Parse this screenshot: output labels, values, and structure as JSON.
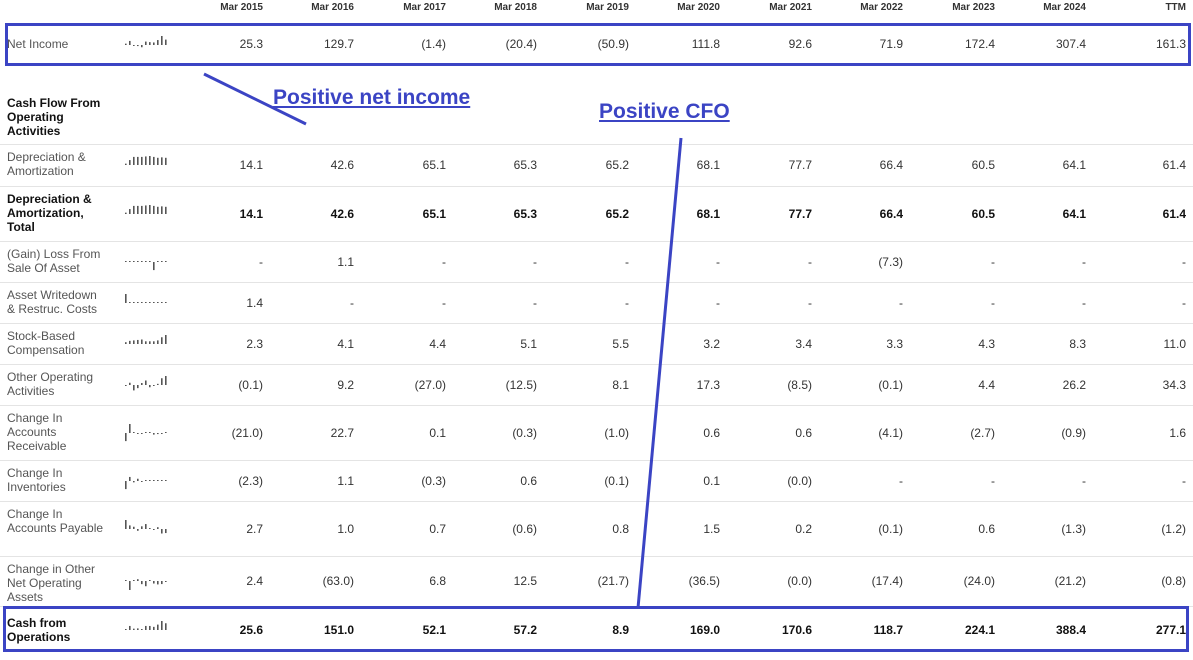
{
  "columns": [
    "Mar 2015",
    "Mar 2016",
    "Mar 2017",
    "Mar 2018",
    "Mar 2019",
    "Mar 2020",
    "Mar 2021",
    "Mar 2022",
    "Mar 2023",
    "Mar 2024",
    "TTM"
  ],
  "net_income": {
    "label": "Net Income",
    "values": [
      "25.3",
      "129.7",
      "(1.4)",
      "(20.4)",
      "(50.9)",
      "111.8",
      "92.6",
      "71.9",
      "172.4",
      "307.4",
      "161.3"
    ]
  },
  "section_header": "Cash Flow From Operating Activities",
  "rows": [
    {
      "label": "Depreciation & Amortization",
      "bold": false,
      "values": [
        "14.1",
        "42.6",
        "65.1",
        "65.3",
        "65.2",
        "68.1",
        "77.7",
        "66.4",
        "60.5",
        "64.1",
        "61.4"
      ]
    },
    {
      "label": "Depreciation & Amortization, Total",
      "bold": true,
      "values": [
        "14.1",
        "42.6",
        "65.1",
        "65.3",
        "65.2",
        "68.1",
        "77.7",
        "66.4",
        "60.5",
        "64.1",
        "61.4"
      ]
    },
    {
      "label": "(Gain) Loss From Sale Of Asset",
      "bold": false,
      "values": [
        "-",
        "1.1",
        "-",
        "-",
        "-",
        "-",
        "-",
        "(7.3)",
        "-",
        "-",
        "-"
      ]
    },
    {
      "label": "Asset Writedown & Restruc. Costs",
      "bold": false,
      "values": [
        "1.4",
        "-",
        "-",
        "-",
        "-",
        "-",
        "-",
        "-",
        "-",
        "-",
        "-"
      ]
    },
    {
      "label": "Stock-Based Compensation",
      "bold": false,
      "values": [
        "2.3",
        "4.1",
        "4.4",
        "5.1",
        "5.5",
        "3.2",
        "3.4",
        "3.3",
        "4.3",
        "8.3",
        "11.0"
      ]
    },
    {
      "label": "Other Operating Activities",
      "bold": false,
      "values": [
        "(0.1)",
        "9.2",
        "(27.0)",
        "(12.5)",
        "8.1",
        "17.3",
        "(8.5)",
        "(0.1)",
        "4.4",
        "26.2",
        "34.3"
      ]
    },
    {
      "label": "Change In Accounts Receivable",
      "bold": false,
      "values": [
        "(21.0)",
        "22.7",
        "0.1",
        "(0.3)",
        "(1.0)",
        "0.6",
        "0.6",
        "(4.1)",
        "(2.7)",
        "(0.9)",
        "1.6"
      ]
    },
    {
      "label": "Change In Inventories",
      "bold": false,
      "values": [
        "(2.3)",
        "1.1",
        "(0.3)",
        "0.6",
        "(0.1)",
        "0.1",
        "(0.0)",
        "-",
        "-",
        "-",
        "-"
      ]
    },
    {
      "label": "Change In Accounts Payable",
      "bold": false,
      "values": [
        "2.7",
        "1.0",
        "0.7",
        "(0.6)",
        "0.8",
        "1.5",
        "0.2",
        "(0.1)",
        "0.6",
        "(1.3)",
        "(1.2)"
      ]
    },
    {
      "label": "Change in Other Net Operating Assets",
      "bold": false,
      "values": [
        "2.4",
        "(63.0)",
        "6.8",
        "12.5",
        "(21.7)",
        "(36.5)",
        "(0.0)",
        "(17.4)",
        "(24.0)",
        "(21.2)",
        "(0.8)"
      ]
    }
  ],
  "cfo": {
    "label": "Cash from Operations",
    "values": [
      "25.6",
      "151.0",
      "52.1",
      "57.2",
      "8.9",
      "169.0",
      "170.6",
      "118.7",
      "224.1",
      "388.4",
      "277.1"
    ]
  },
  "annotations": {
    "net_income": "Positive net income",
    "cfo": "Positive CFO"
  },
  "colors": {
    "annotation": "#3b44c4",
    "sparkline": "#555555"
  }
}
